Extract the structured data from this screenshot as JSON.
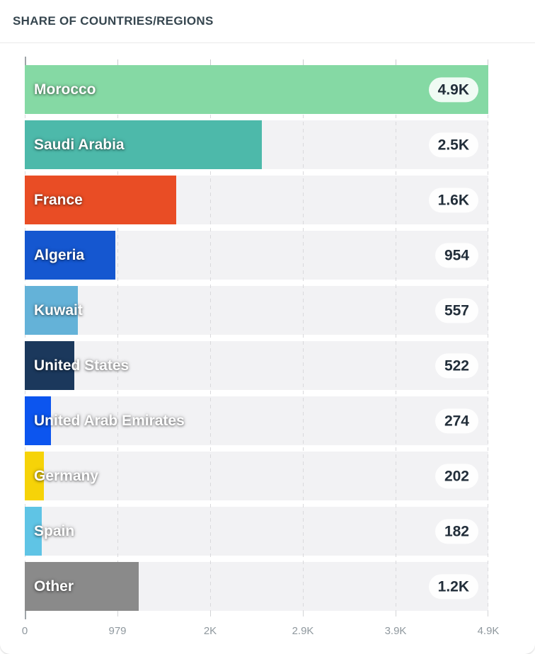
{
  "header": {
    "title": "SHARE OF COUNTRIES/REGIONS"
  },
  "chart_data": {
    "type": "bar",
    "orientation": "horizontal",
    "title": "SHARE OF COUNTRIES/REGIONS",
    "categories": [
      "Morocco",
      "Saudi Arabia",
      "France",
      "Algeria",
      "Kuwait",
      "United States",
      "United Arab Emirates",
      "Germany",
      "Spain",
      "Other"
    ],
    "values": [
      4895,
      2500,
      1600,
      954,
      557,
      522,
      274,
      202,
      182,
      1200
    ],
    "value_labels": [
      "4.9K",
      "2.5K",
      "1.6K",
      "954",
      "557",
      "522",
      "274",
      "202",
      "182",
      "1.2K"
    ],
    "colors": [
      "#85D9A4",
      "#4DB9AA",
      "#E94D25",
      "#1557D0",
      "#64B2D8",
      "#1B385C",
      "#0C55EF",
      "#F6D308",
      "#5FC4E5",
      "#8A8A8A"
    ],
    "xlim": [
      0,
      4895
    ],
    "x_ticks": [
      "0",
      "979",
      "2K",
      "2.9K",
      "3.9K",
      "4.9K"
    ],
    "grid": "dashed-vertical",
    "track_color": "#F2F2F4",
    "legend": "none"
  },
  "styles": {
    "accent_text": "#36464F",
    "axis_text": "#8F989E",
    "pill_background": "rgba(255,255,255,0.88)",
    "pill_text": "#222E3A"
  }
}
